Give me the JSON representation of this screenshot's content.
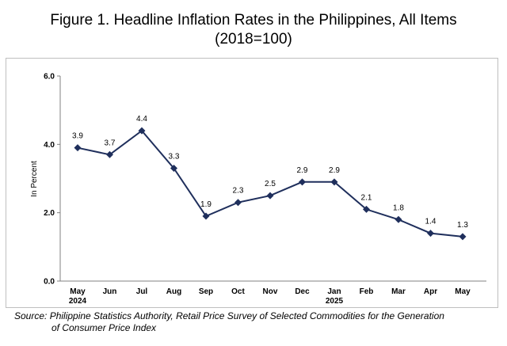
{
  "title": {
    "line1": "Figure 1. Headline Inflation Rates in the Philippines, All Items",
    "line2": "(2018=100)"
  },
  "source": {
    "line1": "Source:  Philippine Statistics Authority, Retail Price Survey of Selected Commodities for the Generation",
    "line2": "of Consumer Price Index"
  },
  "chart_data": {
    "type": "line",
    "title": "Figure 1. Headline Inflation Rates in the Philippines, All Items (2018=100)",
    "xlabel": "",
    "ylabel": "In Percent",
    "ylim": [
      0,
      6
    ],
    "yticks": [
      "0.0",
      "2.0",
      "4.0",
      "6.0"
    ],
    "categories": [
      "May",
      "Jun",
      "Jul",
      "Aug",
      "Sep",
      "Oct",
      "Nov",
      "Dec",
      "Jan",
      "Feb",
      "Mar",
      "Apr",
      "May"
    ],
    "category_sublabels": [
      "2024",
      "",
      "",
      "",
      "",
      "",
      "",
      "",
      "2025",
      "",
      "",
      "",
      ""
    ],
    "series": [
      {
        "values": [
          3.9,
          3.7,
          4.4,
          3.3,
          1.9,
          2.3,
          2.5,
          2.9,
          2.9,
          2.1,
          1.8,
          1.4,
          1.3
        ],
        "labels": [
          "3.9",
          "3.7",
          "4.4",
          "3.3",
          "1.9",
          "2.3",
          "2.5",
          "2.9",
          "2.9",
          "2.1",
          "1.8",
          "1.4",
          "1.3"
        ],
        "color": "#1f2f5c",
        "marker": "diamond"
      }
    ],
    "grid": false,
    "legend": "none"
  }
}
